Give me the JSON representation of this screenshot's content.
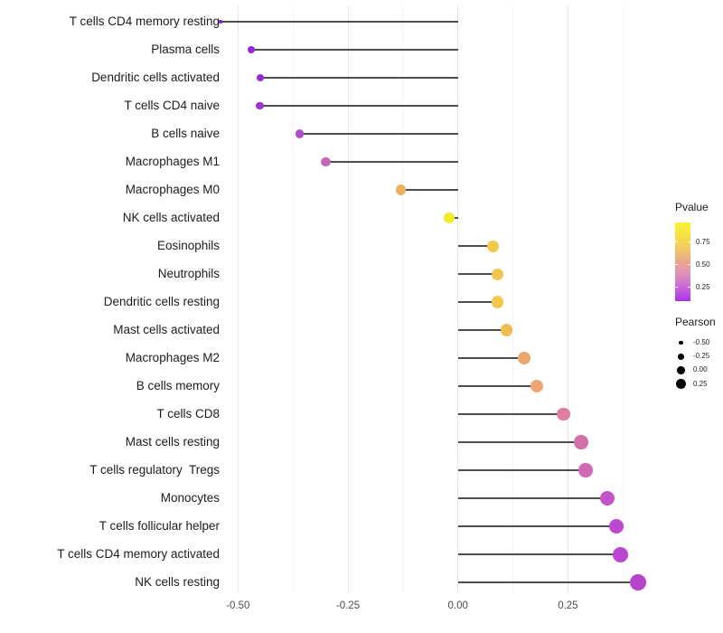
{
  "chart_data": {
    "type": "lollipop",
    "title": "",
    "xlabel": "",
    "ylabel": "",
    "orientation": "horizontal",
    "xlim": [
      -0.585,
      0.458
    ],
    "x_axis": {
      "ticks": [
        {
          "value": -0.5,
          "label": "-0.50"
        },
        {
          "value": -0.25,
          "label": "-0.25"
        },
        {
          "value": 0.0,
          "label": "0.00"
        },
        {
          "value": 0.25,
          "label": "0.25"
        }
      ],
      "minor_gridlines": [
        -0.375,
        -0.125,
        0.125,
        0.375
      ]
    },
    "points": [
      {
        "label": "T cells CD4 memory resting",
        "pearson": -0.54,
        "color": "#7B1FC6",
        "radius": 1.9
      },
      {
        "label": "Plasma cells",
        "pearson": -0.47,
        "color": "#9527DC",
        "radius": 4.0
      },
      {
        "label": "Dendritic cells activated",
        "pearson": -0.45,
        "color": "#9629DB",
        "radius": 4.1
      },
      {
        "label": "T cells CD4 naive",
        "pearson": -0.45,
        "color": "#9D33D5",
        "radius": 4.3
      },
      {
        "label": "B cells naive",
        "pearson": -0.36,
        "color": "#AF4ECB",
        "radius": 4.9
      },
      {
        "label": "Macrophages M1",
        "pearson": -0.3,
        "color": "#C468BE",
        "radius": 5.3
      },
      {
        "label": "Macrophages M0",
        "pearson": -0.13,
        "color": "#ECB35E",
        "radius": 5.9
      },
      {
        "label": "NK cells activated",
        "pearson": -0.02,
        "color": "#F0EC27",
        "radius": 6.1
      },
      {
        "label": "Eosinophils",
        "pearson": 0.08,
        "color": "#F0CA4D",
        "radius": 6.5
      },
      {
        "label": "Neutrophils",
        "pearson": 0.09,
        "color": "#F0C74E",
        "radius": 6.5
      },
      {
        "label": "Dendritic cells resting",
        "pearson": 0.09,
        "color": "#F0C84C",
        "radius": 6.6
      },
      {
        "label": "Mast cells activated",
        "pearson": 0.11,
        "color": "#EFBD52",
        "radius": 6.7
      },
      {
        "label": "Macrophages M2",
        "pearson": 0.15,
        "color": "#EBA76B",
        "radius": 6.9
      },
      {
        "label": "B cells memory",
        "pearson": 0.18,
        "color": "#EFA475",
        "radius": 7.1
      },
      {
        "label": "T cells CD8",
        "pearson": 0.24,
        "color": "#DE7F9B",
        "radius": 7.4
      },
      {
        "label": "Mast cells resting",
        "pearson": 0.28,
        "color": "#D56FAC",
        "radius": 7.7
      },
      {
        "label": "T cells regulatory  Tregs",
        "pearson": 0.29,
        "color": "#D269B4",
        "radius": 7.8
      },
      {
        "label": "Monocytes",
        "pearson": 0.34,
        "color": "#C353CA",
        "radius": 8.2
      },
      {
        "label": "T cells follicular helper",
        "pearson": 0.36,
        "color": "#BC48D1",
        "radius": 8.4
      },
      {
        "label": "T cells CD4 memory activated",
        "pearson": 0.37,
        "color": "#BB46D2",
        "radius": 8.5
      },
      {
        "label": "NK cells resting",
        "pearson": 0.41,
        "color": "#B844CE",
        "radius": 8.9
      }
    ],
    "legend": {
      "pvalue": {
        "title": "Pvalue",
        "tick_values": [
          0.75,
          0.5,
          0.25
        ],
        "tick_labels": [
          "0.75",
          "0.50",
          "0.25"
        ],
        "domain": [
          0.095,
          0.97
        ],
        "gradient_top_to_bottom": [
          "#F7F232",
          "#F7E145",
          "#F3C767",
          "#E9A88C",
          "#DB8FBB",
          "#C765D9",
          "#AC33E6"
        ]
      },
      "pearson": {
        "title": "Pearson",
        "sizes": [
          {
            "label": "-0.50",
            "radius": 2.2
          },
          {
            "label": "-0.25",
            "radius": 3.4
          },
          {
            "label": "0.00",
            "radius": 4.4
          },
          {
            "label": "0.25",
            "radius": 5.2
          }
        ]
      }
    },
    "colors": {
      "background": "#ffffff",
      "stem": "#4d4d4d",
      "grid_major": "#e7e7e7",
      "grid_minor": "#f4f4f4",
      "axis_text": "#4d4d4d",
      "label_text": "#1c1c1c",
      "size_legend_dot": "#000000"
    }
  }
}
